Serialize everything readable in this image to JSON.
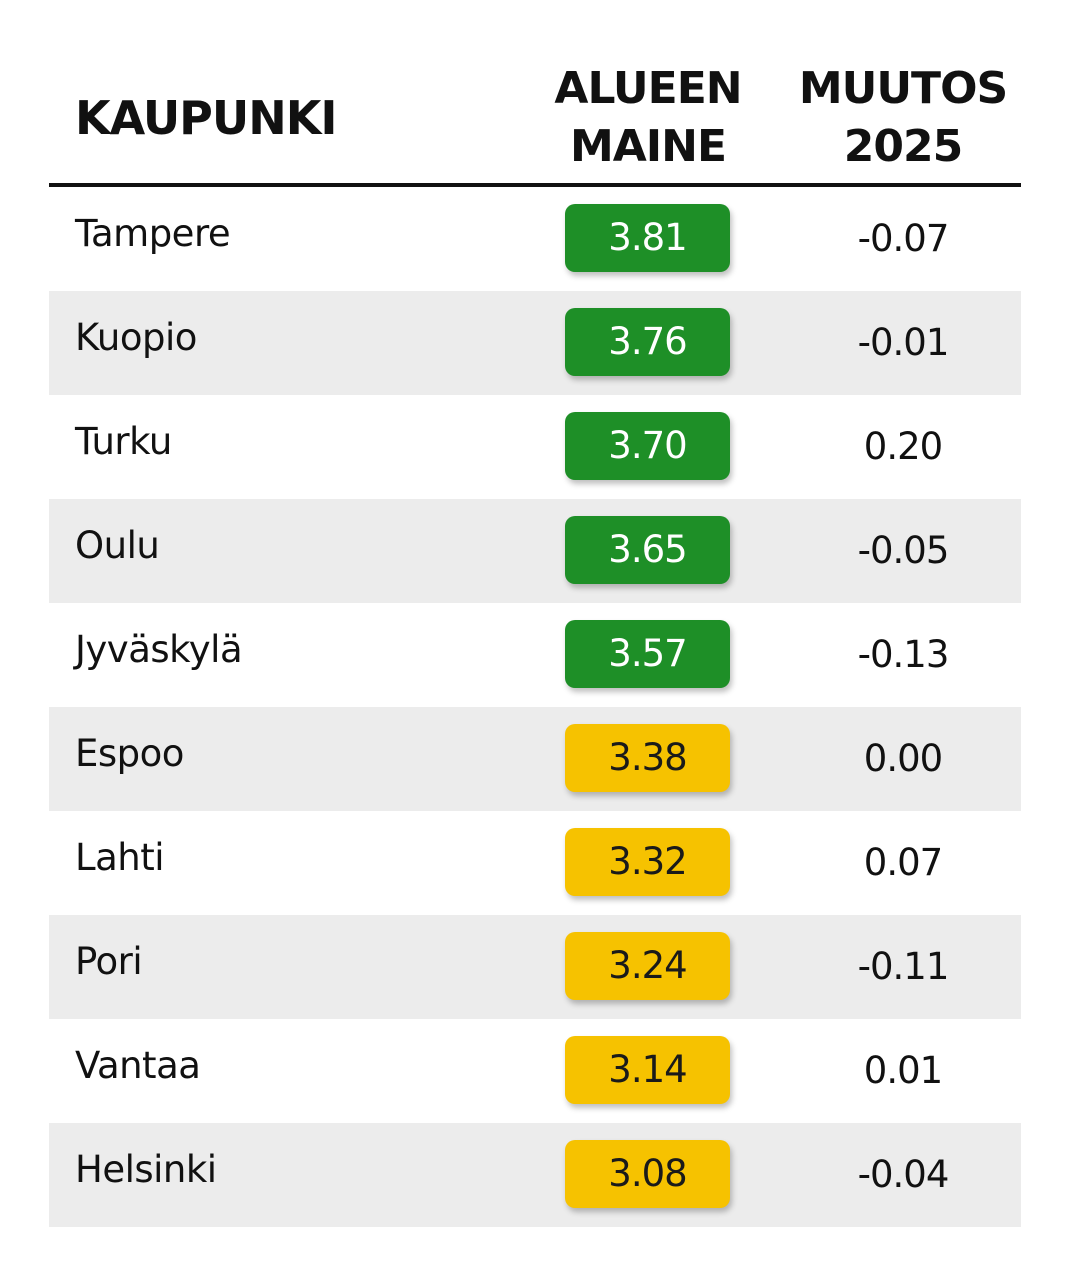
{
  "table": {
    "columns": [
      "KAUPUNKI",
      "ALUEEN MAINE",
      "MUUTOS 2025"
    ],
    "header": {
      "city": "KAUPUNKI",
      "score_line1": "ALUEEN",
      "score_line2": "MAINE",
      "change_line1": "MUUTOS",
      "change_line2": "2025"
    }
  },
  "chart_data": {
    "type": "table",
    "columns": [
      "KAUPUNKI",
      "ALUEEN MAINE",
      "MUUTOS 2025"
    ],
    "rows": [
      {
        "city": "Tampere",
        "score": "3.81",
        "change": "-0.07",
        "color": "#1e8f27",
        "tier": "green"
      },
      {
        "city": "Kuopio",
        "score": "3.76",
        "change": "-0.01",
        "color": "#1e8f27",
        "tier": "green"
      },
      {
        "city": "Turku",
        "score": "3.70",
        "change": "0.20",
        "color": "#1e8f27",
        "tier": "green"
      },
      {
        "city": "Oulu",
        "score": "3.65",
        "change": "-0.05",
        "color": "#1e8f27",
        "tier": "green"
      },
      {
        "city": "Jyväskylä",
        "score": "3.57",
        "change": "-0.13",
        "color": "#1e8f27",
        "tier": "green"
      },
      {
        "city": "Espoo",
        "score": "3.38",
        "change": "0.00",
        "color": "#f6c200",
        "tier": "yellow"
      },
      {
        "city": "Lahti",
        "score": "3.32",
        "change": "0.07",
        "color": "#f6c200",
        "tier": "yellow"
      },
      {
        "city": "Pori",
        "score": "3.24",
        "change": "-0.11",
        "color": "#f6c200",
        "tier": "yellow"
      },
      {
        "city": "Vantaa",
        "score": "3.14",
        "change": "0.01",
        "color": "#f6c200",
        "tier": "yellow"
      },
      {
        "city": "Helsinki",
        "score": "3.08",
        "change": "-0.04",
        "color": "#f6c200",
        "tier": "yellow"
      }
    ]
  }
}
